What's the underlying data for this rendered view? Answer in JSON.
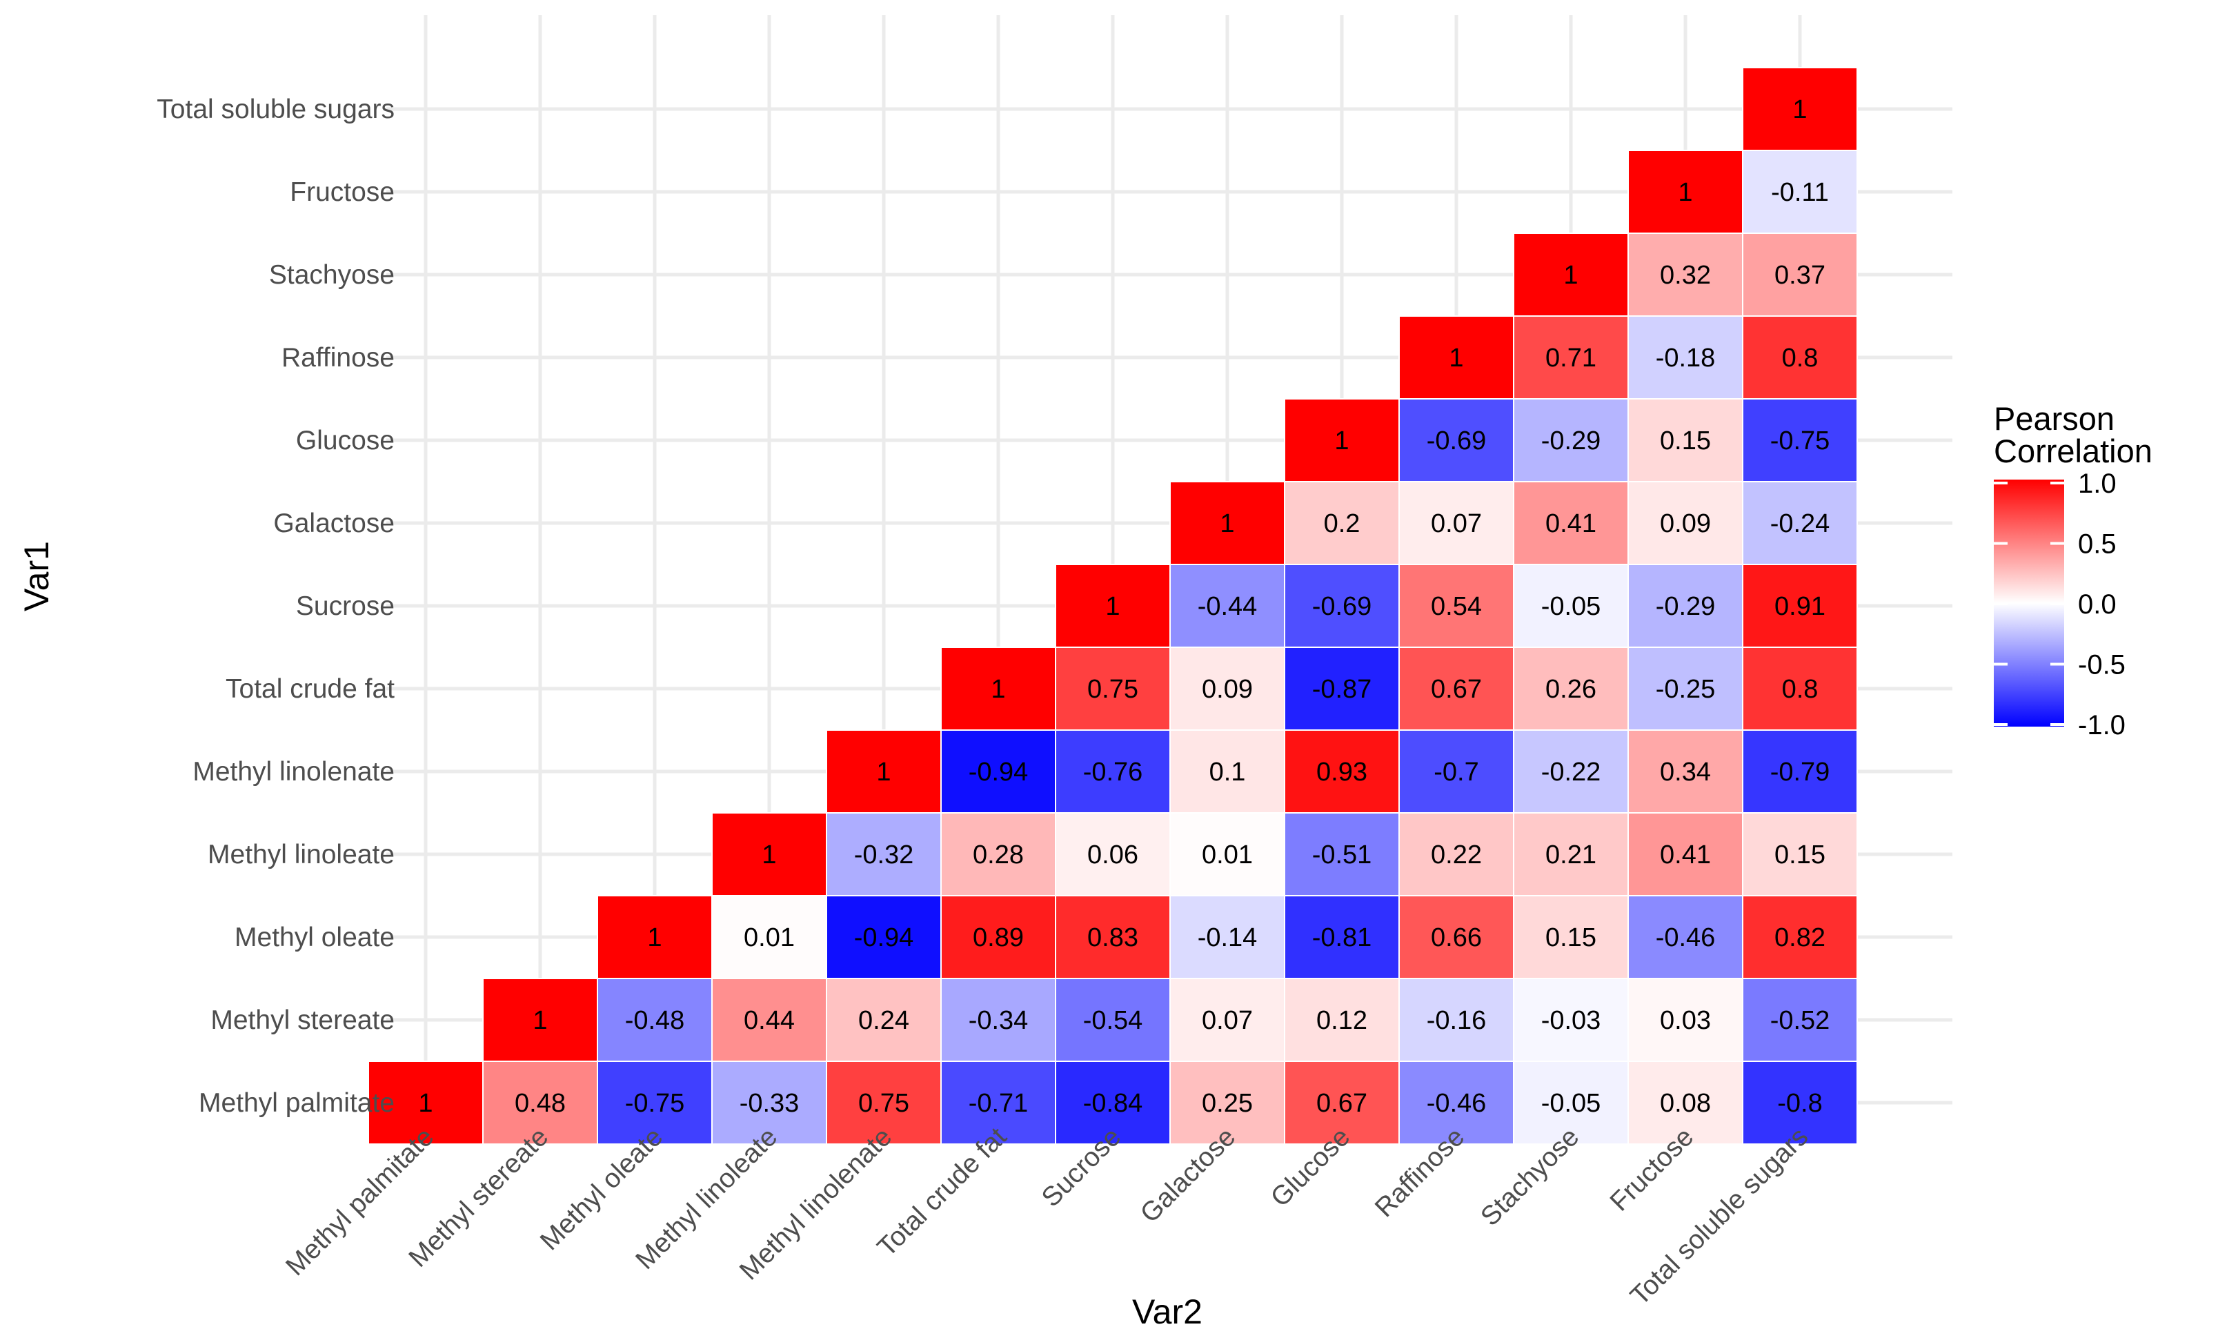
{
  "chart_data": {
    "type": "heatmap",
    "title": "",
    "xlabel": "Var2",
    "ylabel": "Var1",
    "variables": [
      "Methyl palmitate",
      "Methyl stereate",
      "Methyl oleate",
      "Methyl linoleate",
      "Methyl linolenate",
      "Total crude fat",
      "Sucrose",
      "Galactose",
      "Glucose",
      "Raffinose",
      "Stachyose",
      "Fructose",
      "Total soluble sugars"
    ],
    "values": [
      [
        1,
        0.48,
        -0.75,
        -0.33,
        0.75,
        -0.71,
        -0.84,
        0.25,
        0.67,
        -0.46,
        -0.05,
        0.08,
        -0.8
      ],
      [
        null,
        1,
        -0.48,
        0.44,
        0.24,
        -0.34,
        -0.54,
        0.07,
        0.12,
        -0.16,
        -0.03,
        0.03,
        -0.52
      ],
      [
        null,
        null,
        1,
        0.01,
        -0.94,
        0.89,
        0.83,
        -0.14,
        -0.81,
        0.66,
        0.15,
        -0.46,
        0.82
      ],
      [
        null,
        null,
        null,
        1,
        -0.32,
        0.28,
        0.06,
        0.01,
        -0.51,
        0.22,
        0.21,
        0.41,
        0.15
      ],
      [
        null,
        null,
        null,
        null,
        1,
        -0.94,
        -0.76,
        0.1,
        0.93,
        -0.7,
        -0.22,
        0.34,
        -0.79
      ],
      [
        null,
        null,
        null,
        null,
        null,
        1,
        0.75,
        0.09,
        -0.87,
        0.67,
        0.26,
        -0.25,
        0.8
      ],
      [
        null,
        null,
        null,
        null,
        null,
        null,
        1,
        -0.44,
        -0.69,
        0.54,
        -0.05,
        -0.29,
        0.91
      ],
      [
        null,
        null,
        null,
        null,
        null,
        null,
        null,
        1,
        0.2,
        0.07,
        0.41,
        0.09,
        -0.24
      ],
      [
        null,
        null,
        null,
        null,
        null,
        null,
        null,
        null,
        1,
        -0.69,
        -0.29,
        0.15,
        -0.75
      ],
      [
        null,
        null,
        null,
        null,
        null,
        null,
        null,
        null,
        null,
        1,
        0.71,
        -0.18,
        0.8
      ],
      [
        null,
        null,
        null,
        null,
        null,
        null,
        null,
        null,
        null,
        null,
        1,
        0.32,
        0.37
      ],
      [
        null,
        null,
        null,
        null,
        null,
        null,
        null,
        null,
        null,
        null,
        null,
        1,
        -0.11
      ],
      [
        null,
        null,
        null,
        null,
        null,
        null,
        null,
        null,
        null,
        null,
        null,
        null,
        1
      ]
    ],
    "legend": {
      "title_line1": "Pearson",
      "title_line2": "Correlation",
      "ticks": [
        1.0,
        0.5,
        0.0,
        -0.5,
        -1.0
      ],
      "tick_labels": [
        "1.0",
        "0.5",
        "0.0",
        "-0.5",
        "-1.0"
      ],
      "limits": [
        -1,
        1
      ],
      "placement": "right"
    },
    "colors": {
      "low": "#0000ff",
      "mid": "#ffffff",
      "high": "#ff0000",
      "grid": "#ebebeb",
      "background": "#ffffff"
    }
  }
}
